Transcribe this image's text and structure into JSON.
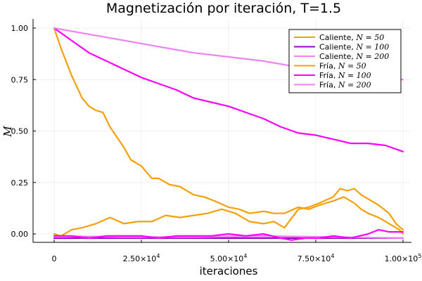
{
  "chart_data": {
    "type": "line",
    "title": "Magnetización por iteración, T=1.5",
    "xlabel": "iteraciones",
    "ylabel": "M",
    "xlim": [
      0,
      100000
    ],
    "ylim": [
      -0.04,
      1.04
    ],
    "x_ticks": [
      0,
      25000,
      50000,
      75000,
      100000
    ],
    "x_tick_labels": [
      "0",
      "2.50×10",
      "5.00×10",
      "7.50×10",
      "1.00×10"
    ],
    "x_tick_exponents": [
      "",
      "4",
      "4",
      "4",
      "5"
    ],
    "y_ticks": [
      0,
      0.25,
      0.5,
      0.75,
      1.0
    ],
    "y_tick_labels": [
      "0.00",
      "0.25",
      "0.50",
      "0.75",
      "1.00"
    ],
    "grid": true,
    "legend_position": "top-right",
    "series": [
      {
        "name": "Caliente, ",
        "math": "N = 50",
        "color": "#f5a00a",
        "x": [
          0,
          2000,
          5000,
          8000,
          10000,
          12000,
          14000,
          16000,
          18000,
          20000,
          22000,
          25000,
          28000,
          30000,
          33000,
          36000,
          40000,
          43000,
          46000,
          50000,
          53000,
          56000,
          60000,
          63000,
          66000,
          70000,
          73000,
          76000,
          80000,
          83000,
          86000,
          88000,
          90000,
          93000,
          96000,
          99000,
          100000
        ],
        "y": [
          1.0,
          0.9,
          0.77,
          0.66,
          0.62,
          0.6,
          0.59,
          0.52,
          0.47,
          0.42,
          0.36,
          0.33,
          0.27,
          0.27,
          0.24,
          0.23,
          0.19,
          0.18,
          0.16,
          0.13,
          0.12,
          0.1,
          0.11,
          0.1,
          0.1,
          0.13,
          0.12,
          0.14,
          0.16,
          0.18,
          0.15,
          0.12,
          0.1,
          0.08,
          0.05,
          0.02,
          0.0
        ]
      },
      {
        "name": "Caliente, ",
        "math": "N = 100",
        "color": "#9a00c8",
        "x": [
          0,
          20000,
          40000,
          60000,
          80000,
          100000
        ],
        "y": [
          -0.02,
          -0.02,
          -0.02,
          -0.02,
          -0.02,
          -0.02
        ]
      },
      {
        "name": "Caliente, ",
        "math": "N = 200",
        "color": "#ee82ee",
        "x": [
          0,
          20000,
          40000,
          60000,
          80000,
          100000
        ],
        "y": [
          -0.01,
          -0.015,
          -0.015,
          -0.01,
          -0.015,
          -0.02
        ]
      },
      {
        "name": "Fría, ",
        "math": "N = 50",
        "color": "#f5a00a",
        "x": [
          0,
          2000,
          5000,
          8000,
          12000,
          16000,
          20000,
          24000,
          28000,
          32000,
          36000,
          40000,
          44000,
          48000,
          52000,
          56000,
          60000,
          63000,
          66000,
          70000,
          73000,
          76000,
          80000,
          82000,
          84000,
          86000,
          88000,
          90000,
          93000,
          96000,
          98000,
          100000
        ],
        "y": [
          0.0,
          -0.01,
          0.02,
          0.03,
          0.05,
          0.08,
          0.05,
          0.06,
          0.06,
          0.09,
          0.08,
          0.09,
          0.1,
          0.12,
          0.1,
          0.06,
          0.05,
          0.06,
          0.03,
          0.12,
          0.13,
          0.15,
          0.18,
          0.22,
          0.21,
          0.22,
          0.19,
          0.17,
          0.14,
          0.1,
          0.05,
          0.02
        ]
      },
      {
        "name": "Fría, ",
        "math": "N = 100",
        "color": "#ff00ff",
        "x": [
          0,
          5000,
          10000,
          15000,
          20000,
          25000,
          30000,
          35000,
          40000,
          45000,
          50000,
          55000,
          60000,
          65000,
          70000,
          75000,
          80000,
          85000,
          90000,
          95000,
          100000
        ],
        "y": [
          1.0,
          0.94,
          0.88,
          0.84,
          0.8,
          0.76,
          0.73,
          0.7,
          0.66,
          0.64,
          0.62,
          0.59,
          0.56,
          0.52,
          0.49,
          0.48,
          0.46,
          0.44,
          0.44,
          0.43,
          0.4
        ]
      },
      {
        "name": "Fría, ",
        "math": "N = 200",
        "color": "#ee82ee",
        "x": [
          0,
          10000,
          20000,
          30000,
          40000,
          50000,
          60000,
          70000,
          80000,
          90000,
          100000
        ],
        "y": [
          1.0,
          0.97,
          0.94,
          0.91,
          0.88,
          0.86,
          0.84,
          0.81,
          0.79,
          0.77,
          0.75
        ]
      },
      {
        "name": "",
        "math": "",
        "color": "#ff00ff",
        "x": [
          0,
          5000,
          10000,
          15000,
          20000,
          25000,
          30000,
          35000,
          40000,
          45000,
          50000,
          55000,
          60000,
          65000,
          68000,
          72000,
          76000,
          80000,
          85000,
          90000,
          93000,
          96000,
          100000
        ],
        "y": [
          -0.01,
          -0.01,
          -0.02,
          -0.01,
          -0.01,
          -0.01,
          -0.02,
          -0.01,
          -0.01,
          -0.01,
          0.0,
          -0.01,
          0.0,
          -0.02,
          -0.03,
          -0.02,
          -0.02,
          -0.01,
          -0.02,
          0.0,
          0.02,
          0.01,
          0.01
        ]
      }
    ]
  }
}
